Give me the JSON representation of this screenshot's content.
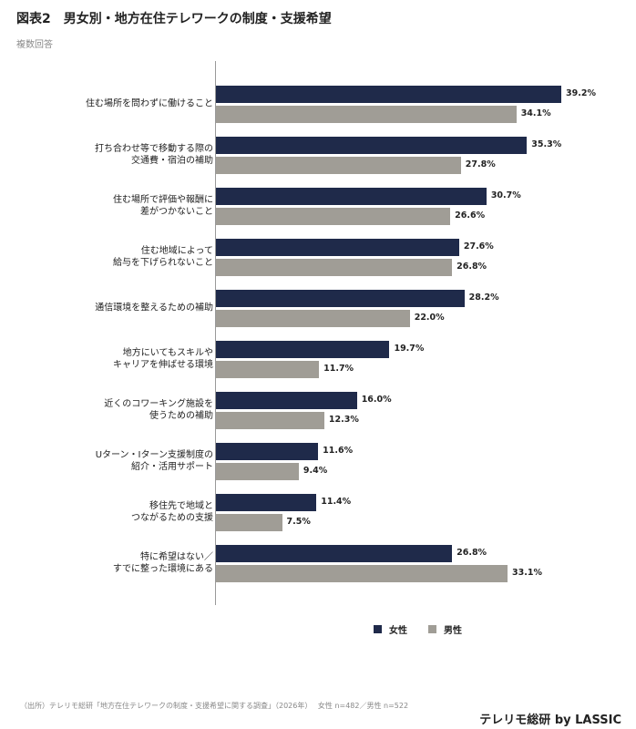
{
  "chart_data": {
    "type": "barh",
    "title": "図表2　男女別・地方在住テレワークの制度・支援希望",
    "subtitle": "複数回答",
    "categories": [
      "住む場所を問わずに働けること",
      "打ち合わせ等で移動する際の\n交通費・宿泊の補助",
      "住む場所で評価や報酬に\n差がつかないこと",
      "住む地域によって\n給与を下げられないこと",
      "通信環境を整えるための補助",
      "地方にいてもスキルや\nキャリアを伸ばせる環境",
      "近くのコワーキング施設を\n使うための補助",
      "Uターン・Iターン支援制度の\n紹介・活用サポート",
      "移住先で地域と\nつながるための支援",
      "特に希望はない／\nすでに整った環境にある"
    ],
    "series": [
      {
        "name": "女性",
        "color": "#1f2a4a",
        "values": [
          39.2,
          35.3,
          30.7,
          27.6,
          28.2,
          19.7,
          16.0,
          11.6,
          11.4,
          26.8
        ],
        "value_labels": [
          "39.2%",
          "35.3%",
          "30.7%",
          "27.6%",
          "28.2%",
          "19.7%",
          "16.0%",
          "11.6%",
          "11.4%",
          "26.8%"
        ]
      },
      {
        "name": "男性",
        "color": "#a09d96",
        "values": [
          34.1,
          27.8,
          26.6,
          26.8,
          22.0,
          11.7,
          12.3,
          9.4,
          7.5,
          33.1
        ],
        "value_labels": [
          "34.1%",
          "27.8%",
          "26.6%",
          "26.8%",
          "22.0%",
          "11.7%",
          "12.3%",
          "9.4%",
          "7.5%",
          "33.1%"
        ]
      }
    ],
    "source": "（出所）テレリモ総研「地方在住テレワークの制度・支援希望に関する調査」（2026年）　 女性 n=482／男性 n=522",
    "brand": "テレリモ総研 by LASSIC"
  }
}
